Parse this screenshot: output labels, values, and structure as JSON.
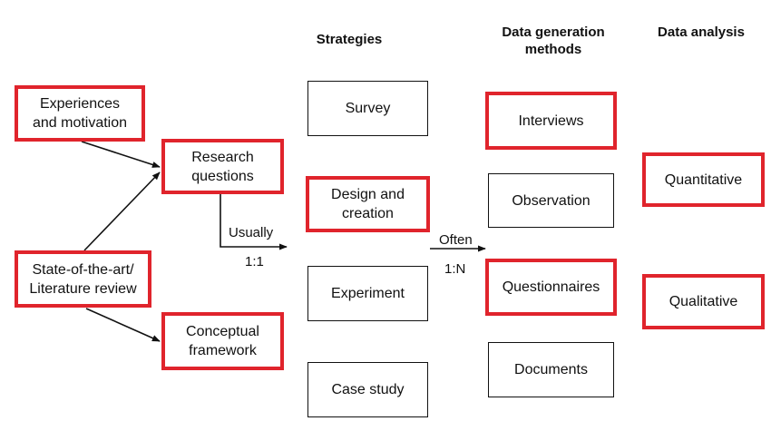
{
  "headers": {
    "strategies": "Strategies",
    "data_generation": "Data generation\nmethods",
    "data_analysis": "Data analysis"
  },
  "left": {
    "experiences": "Experiences\nand motivation",
    "research_questions": "Research\nquestions",
    "state_of_art": "State-of-the-art/\nLiterature review",
    "conceptual_framework": "Conceptual\nframework"
  },
  "strategies": {
    "survey": "Survey",
    "design_creation": "Design and\ncreation",
    "experiment": "Experiment",
    "case_study": "Case study"
  },
  "methods": {
    "interviews": "Interviews",
    "observation": "Observation",
    "questionnaires": "Questionnaires",
    "documents": "Documents"
  },
  "analysis": {
    "quantitative": "Quantitative",
    "qualitative": "Qualitative"
  },
  "labels": {
    "usually": "Usually",
    "one_to_one": "1:1",
    "often": "Often",
    "one_to_n": "1:N"
  },
  "colors": {
    "highlight": "#e0242c",
    "outline": "#111111"
  }
}
